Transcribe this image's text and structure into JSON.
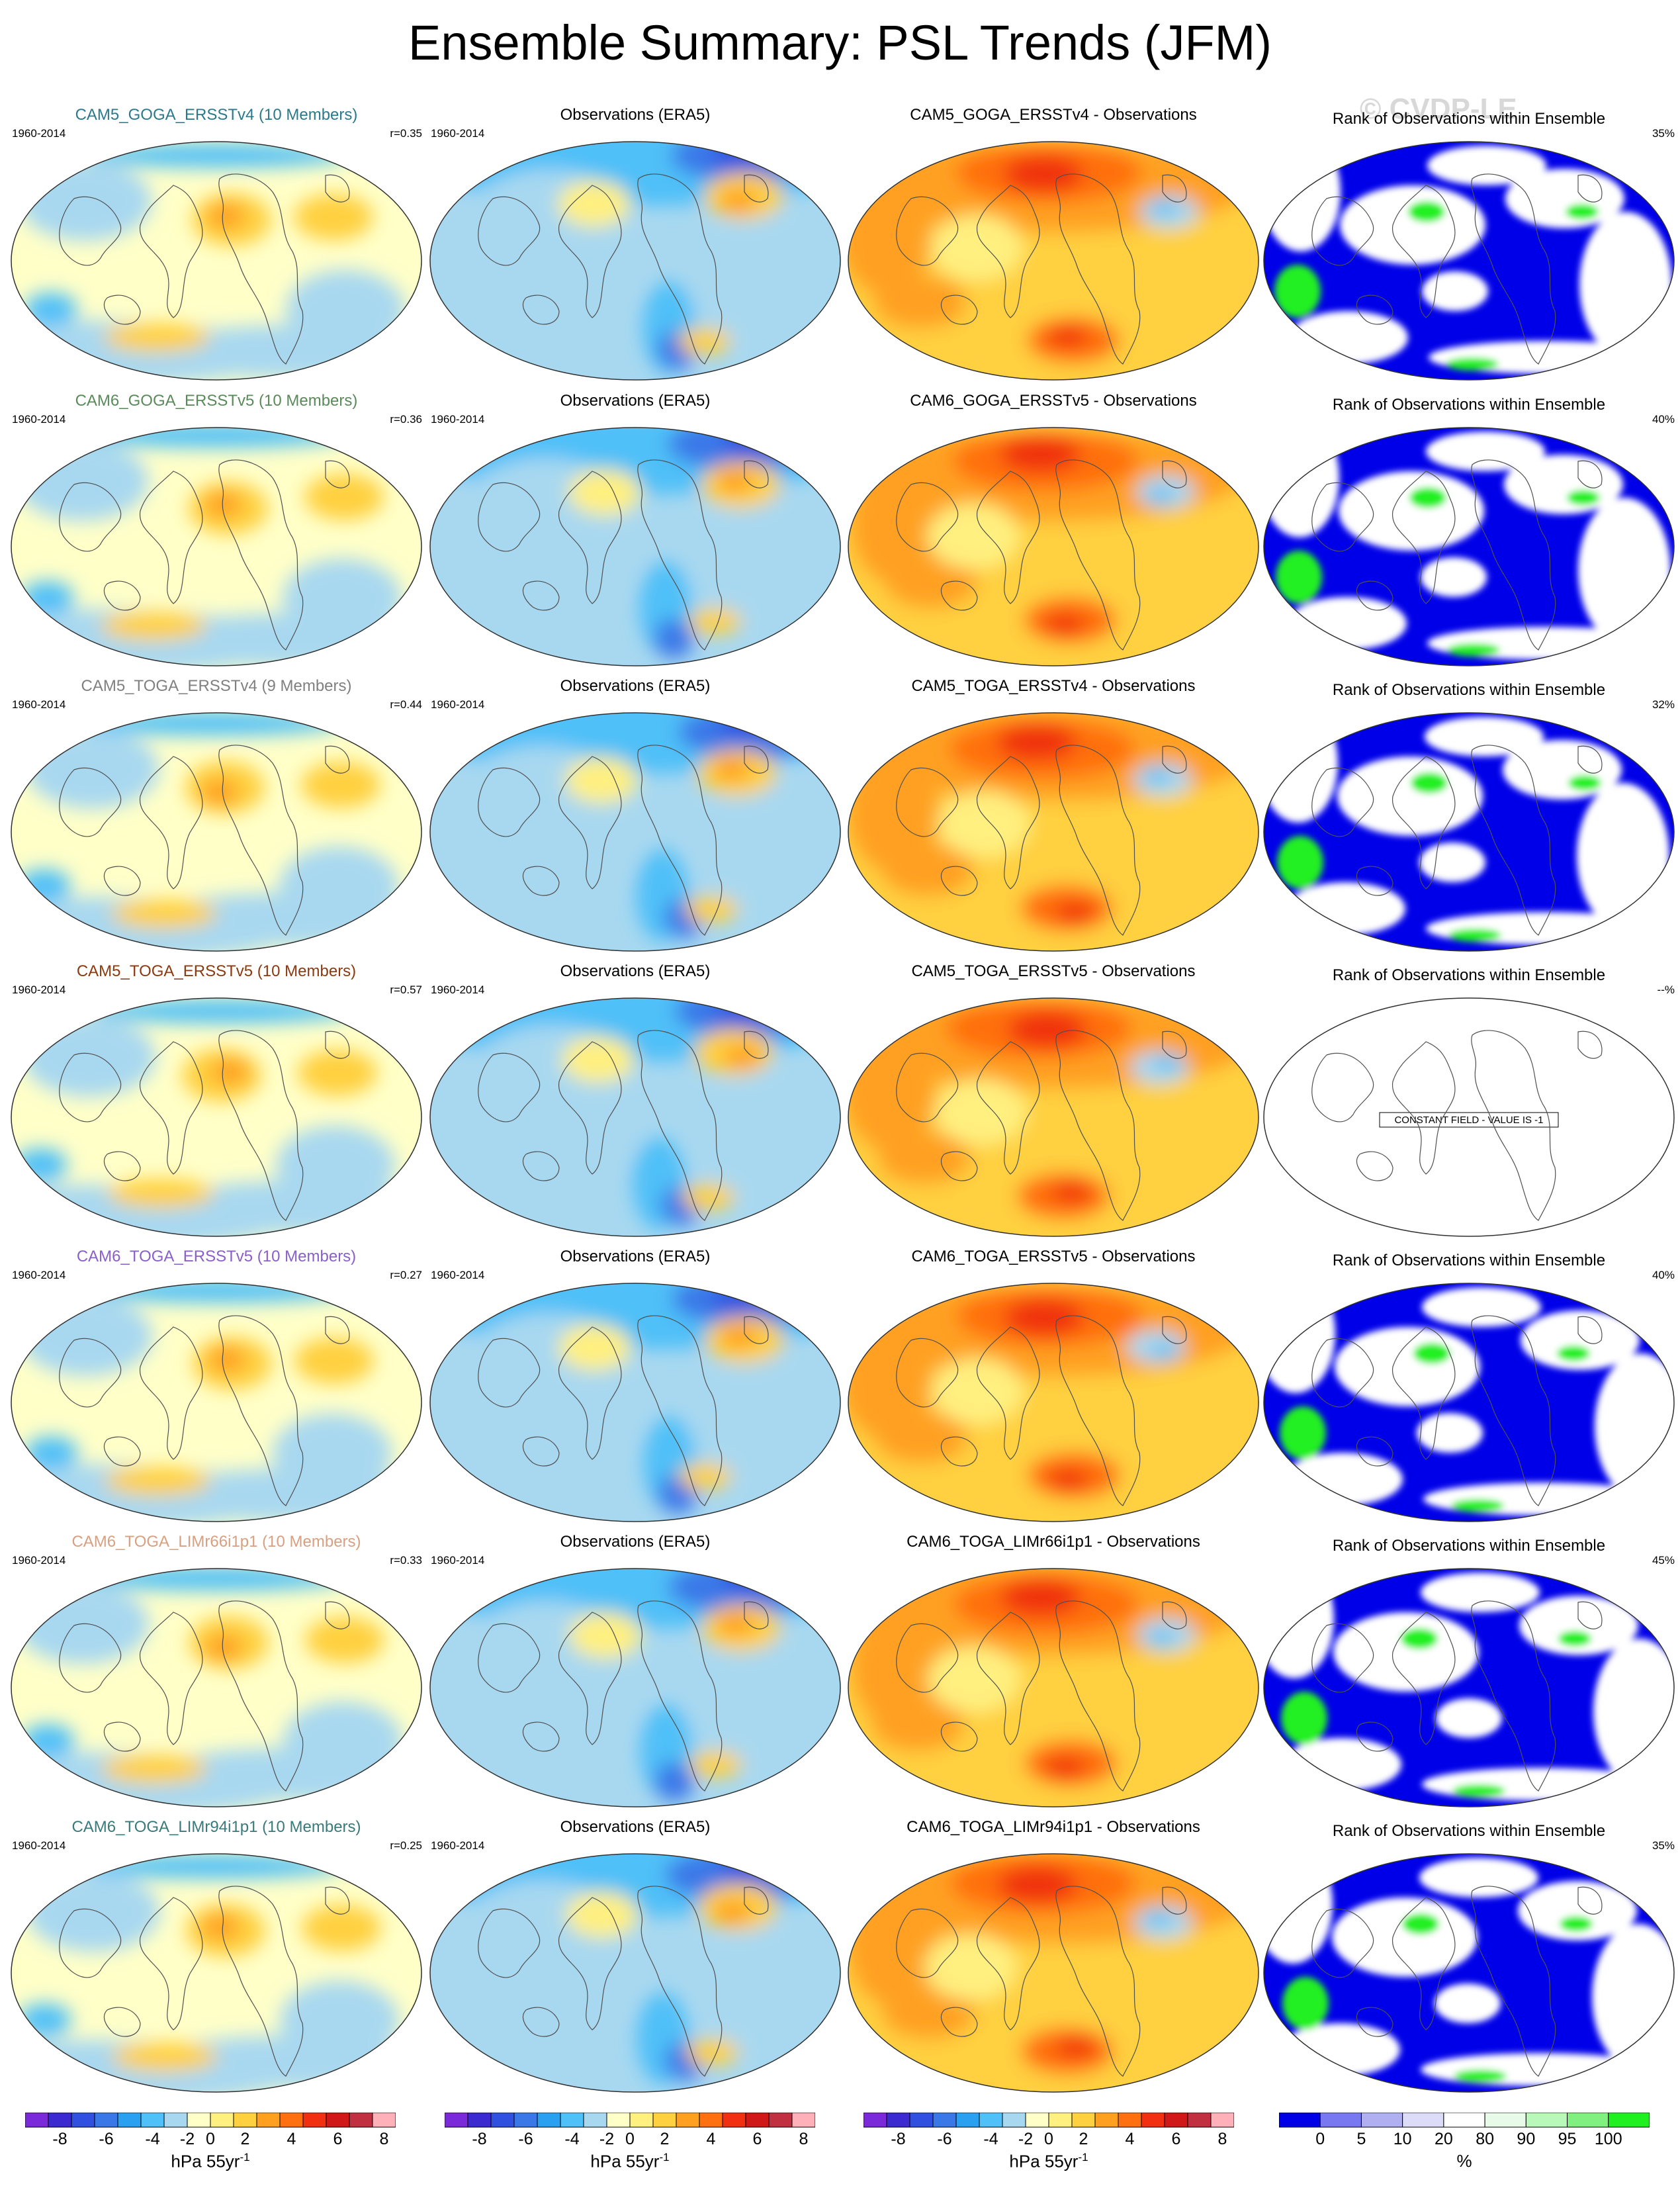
{
  "title": "Ensemble Summary: PSL Trends (JFM)",
  "watermark": "© CVDP-LE",
  "chart_data": {
    "type": "heatmap",
    "layout": "7 rows x 4 columns of global maps",
    "period": "1960-2014",
    "rows": [
      {
        "model": "CAM5_GOGA_ERSSTv4 (10 Members)",
        "model_color": "#2a7a8c",
        "r": "r=0.35",
        "diff_title": "CAM5_GOGA_ERSSTv4 - Observations",
        "rank_pct": "35%",
        "rank_constant": false
      },
      {
        "model": "CAM6_GOGA_ERSSTv5 (10 Members)",
        "model_color": "#5a8a5a",
        "r": "r=0.36",
        "diff_title": "CAM6_GOGA_ERSSTv5 - Observations",
        "rank_pct": "40%",
        "rank_constant": false
      },
      {
        "model": "CAM5_TOGA_ERSSTv4 (9 Members)",
        "model_color": "#808080",
        "r": "r=0.44",
        "diff_title": "CAM5_TOGA_ERSSTv4 - Observations",
        "rank_pct": "32%",
        "rank_constant": false
      },
      {
        "model": "CAM5_TOGA_ERSSTv5 (10 Members)",
        "model_color": "#8b3a10",
        "r": "r=0.57",
        "diff_title": "CAM5_TOGA_ERSSTv5 - Observations",
        "rank_pct": "--%",
        "rank_constant": true
      },
      {
        "model": "CAM6_TOGA_ERSSTv5 (10 Members)",
        "model_color": "#8a60c8",
        "r": "r=0.27",
        "diff_title": "CAM6_TOGA_ERSSTv5 - Observations",
        "rank_pct": "40%",
        "rank_constant": false
      },
      {
        "model": "CAM6_TOGA_LIMr66i1p1 (10 Members)",
        "model_color": "#d8a080",
        "r": "r=0.33",
        "diff_title": "CAM6_TOGA_LIMr66i1p1 - Observations",
        "rank_pct": "45%",
        "rank_constant": false
      },
      {
        "model": "CAM6_TOGA_LIMr94i1p1 (10 Members)",
        "model_color": "#3a7a7a",
        "r": "r=0.25",
        "diff_title": "CAM6_TOGA_LIMr94i1p1 - Observations",
        "rank_pct": "35%",
        "rank_constant": false
      }
    ],
    "obs_title": "Observations (ERA5)",
    "rank_title": "Rank of Observations within Ensemble",
    "constant_field_text": "CONSTANT FIELD - VALUE IS -1",
    "colorbar_psl": {
      "ticks": [
        "-8",
        "-6",
        "-4",
        "-2",
        "0",
        "2",
        "4",
        "6",
        "8"
      ],
      "unit": "hPa 55yr",
      "unit_exp": "-1",
      "colors": [
        "#7a2ad8",
        "#3a2ad0",
        "#3050e0",
        "#3a78e8",
        "#2aa0f0",
        "#50c0f8",
        "#a8d8f0",
        "#ffffc8",
        "#fff080",
        "#ffd040",
        "#ffa020",
        "#ff7010",
        "#f03010",
        "#d01818",
        "#c03040",
        "#ffb0b8"
      ]
    },
    "colorbar_rank": {
      "ticks": [
        "0",
        "5",
        "10",
        "20",
        "80",
        "90",
        "95",
        "100"
      ],
      "unit": "%",
      "colors": [
        "#0000e8",
        "#7878f0",
        "#b0b0f0",
        "#dcdcf8",
        "#ffffff",
        "#e8fbe8",
        "#b8f8b8",
        "#80f080",
        "#20f020"
      ]
    }
  }
}
